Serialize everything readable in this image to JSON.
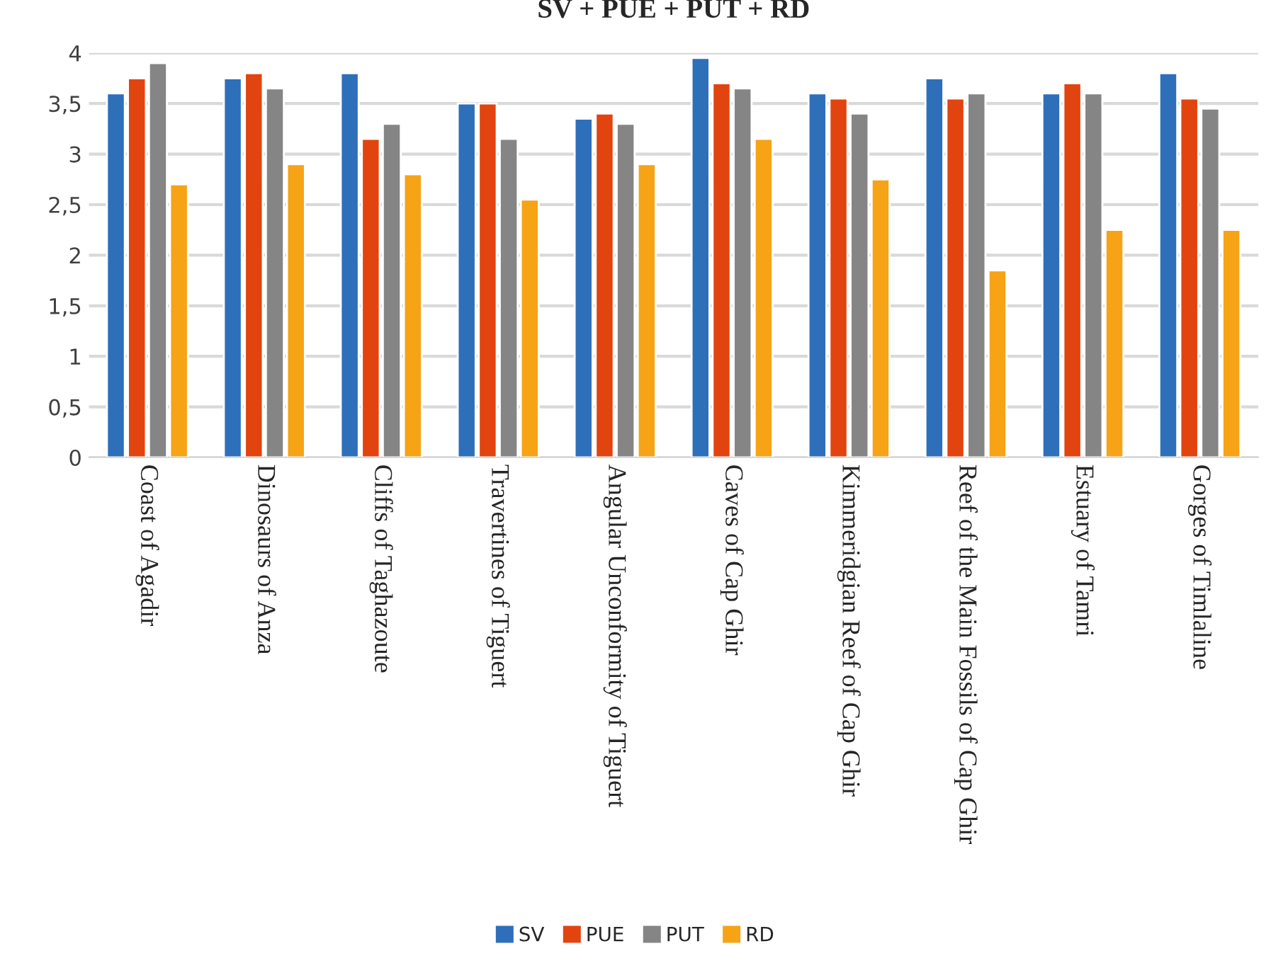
{
  "chart_data": {
    "type": "bar",
    "title": "SV + PUE + PUT + RD",
    "categories": [
      "Coast of Agadir",
      "Dinosaurs of Anza",
      "Cliffs of Taghazoute",
      "Travertines of Tiguert",
      "Angular Unconformity of Tiguert",
      "Caves of Cap Ghir",
      "Kimmeridgian Reef of Cap Ghir",
      "Reef of the Main Fossils of Cap Ghir",
      "Estuary of Tamri",
      "Gorges of Timlaline"
    ],
    "series": [
      {
        "name": "SV",
        "color": "#2e6fba",
        "values": [
          3.6,
          3.75,
          3.8,
          3.5,
          3.35,
          3.95,
          3.6,
          3.75,
          3.6,
          3.8
        ]
      },
      {
        "name": "PUE",
        "color": "#e2440f",
        "values": [
          3.75,
          3.8,
          3.15,
          3.5,
          3.4,
          3.7,
          3.55,
          3.55,
          3.7,
          3.55
        ]
      },
      {
        "name": "PUT",
        "color": "#858585",
        "values": [
          3.9,
          3.65,
          3.3,
          3.15,
          3.3,
          3.65,
          3.4,
          3.6,
          3.6,
          3.45
        ]
      },
      {
        "name": "RD",
        "color": "#f6a316",
        "values": [
          2.7,
          2.9,
          2.8,
          2.55,
          2.9,
          3.15,
          2.75,
          1.85,
          2.25,
          2.25
        ]
      }
    ],
    "ylim": [
      0,
      4
    ],
    "yticks": [
      0,
      {
        "value": 0.5,
        "label": "0,5"
      },
      1,
      {
        "value": 1.5,
        "label": "1,5"
      },
      2,
      {
        "value": 2.5,
        "label": "2,5"
      },
      3,
      {
        "value": 3.5,
        "label": "3,5"
      },
      4
    ],
    "grid": "y",
    "legend": "bottom"
  }
}
